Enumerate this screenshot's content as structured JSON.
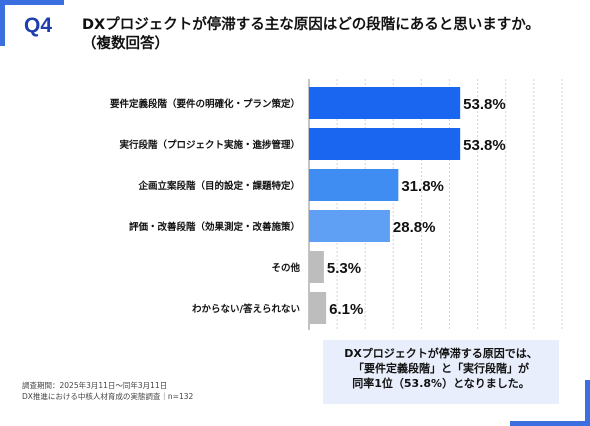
{
  "header": {
    "question_number": "Q4",
    "title_line1": "DXプロジェクトが停滞する主な原因はどの段階にあると思いますか。",
    "title_line2": "（複数回答）"
  },
  "chart_data": {
    "type": "bar",
    "orientation": "horizontal",
    "categories": [
      "要件定義段階（要件の明確化・プラン策定）",
      "実行段階（プロジェクト実施・進捗管理）",
      "企画立案段階（目的設定・課題特定）",
      "評価・改善段階（効果測定・改善施策）",
      "その他",
      "わからない/答えられない"
    ],
    "values": [
      53.8,
      53.8,
      31.8,
      28.8,
      5.3,
      6.1
    ],
    "value_labels": [
      "53.8%",
      "53.8%",
      "31.8%",
      "28.8%",
      "5.3%",
      "6.1%"
    ],
    "bar_colors": [
      "#1a66f0",
      "#1a66f0",
      "#3f8cf2",
      "#5fa0f5",
      "#bdbdbd",
      "#bdbdbd"
    ],
    "xlim": [
      0,
      100
    ],
    "grid": true,
    "title": "",
    "xlabel": "",
    "ylabel": ""
  },
  "callout": {
    "line1": "DXプロジェクトが停滞する原因では、",
    "line2": "「要件定義段階」と「実行段階」が",
    "line3": "同率1位（53.8%）となりました。"
  },
  "footnote": {
    "line1": "調査期間：2025年3月11日〜同年3月11日",
    "line2": "DX推進における中核人材育成の実態調査｜n=132"
  },
  "colors": {
    "accent": "#3b6fe0",
    "heading": "#1f3fae",
    "callout_bg": "#e8eefb",
    "grid": "#d0d6e8"
  }
}
